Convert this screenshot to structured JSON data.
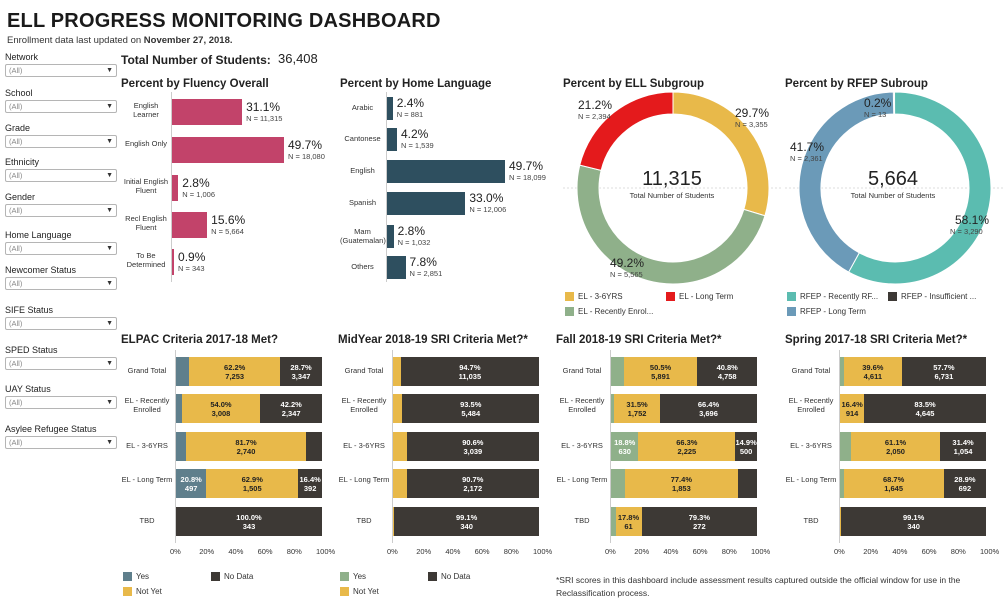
{
  "header": {
    "title": "ELL PROGRESS MONITORING DASHBOARD",
    "updated_prefix": "Enrollment data last updated on ",
    "updated_date": "November 27, 2018.",
    "total_label": "Total Number of Students:",
    "total_value": "36,408"
  },
  "filters": [
    {
      "label": "Network",
      "value": "(All)"
    },
    {
      "label": "School",
      "value": "(All)"
    },
    {
      "label": "Grade",
      "value": "(All)"
    },
    {
      "label": "Ethnicity",
      "value": "(All)"
    },
    {
      "label": "Gender",
      "value": "(All)"
    },
    {
      "label": "Home Language",
      "value": "(All)"
    },
    {
      "label": "Newcomer Status",
      "value": "(All)"
    },
    {
      "label": "SIFE Status",
      "value": "(All)"
    },
    {
      "label": "SPED Status",
      "value": "(All)"
    },
    {
      "label": "UAY Status",
      "value": "(All)"
    },
    {
      "label": "Asylee Refugee Status",
      "value": "(All)"
    }
  ],
  "colors": {
    "pink": "#c2436a",
    "navy": "#2e4f5f",
    "yellow": "#e8b94a",
    "red": "#e41a1c",
    "green": "#8fb08a",
    "teal": "#5bbcb0",
    "steel": "#6b9ab8",
    "dark": "#3d3935",
    "slate": "#5f7f8c"
  },
  "fluency": {
    "title": "Percent by Fluency Overall",
    "rows": [
      {
        "label": "English Learner",
        "pct": "31.1%",
        "n": "N = 11,315",
        "value": 31.1
      },
      {
        "label": "English Only",
        "pct": "49.7%",
        "n": "N = 18,080",
        "value": 49.7
      },
      {
        "label": "Initial English Fluent",
        "pct": "2.8%",
        "n": "N = 1,006",
        "value": 2.8
      },
      {
        "label": "Recl English Fluent",
        "pct": "15.6%",
        "n": "N = 5,664",
        "value": 15.6
      },
      {
        "label": "To Be Determined",
        "pct": "0.9%",
        "n": "N = 343",
        "value": 0.9
      }
    ]
  },
  "home_language": {
    "title": "Percent by Home Language",
    "rows": [
      {
        "label": "Arabic",
        "pct": "2.4%",
        "n": "N = 881",
        "value": 2.4
      },
      {
        "label": "Cantonese",
        "pct": "4.2%",
        "n": "N = 1,539",
        "value": 4.2
      },
      {
        "label": "English",
        "pct": "49.7%",
        "n": "N = 18,099",
        "value": 49.7
      },
      {
        "label": "Spanish",
        "pct": "33.0%",
        "n": "N = 12,006",
        "value": 33.0
      },
      {
        "label": "Mam (Guatemalan)",
        "pct": "2.8%",
        "n": "N = 1,032",
        "value": 2.8
      },
      {
        "label": "Others",
        "pct": "7.8%",
        "n": "N = 2,851",
        "value": 7.8
      }
    ]
  },
  "ell_subgroup": {
    "title": "Percent by ELL Subgroup",
    "center_value": "11,315",
    "center_label": "Total Number of Students",
    "slices": [
      {
        "name": "EL - 3-6YRS",
        "pct": "29.7%",
        "n": "N = 3,355",
        "value": 29.7,
        "color": "#e8b94a"
      },
      {
        "name": "EL - Recently Enrol...",
        "pct": "49.2%",
        "n": "N = 5,565",
        "value": 49.2,
        "color": "#8fb08a"
      },
      {
        "name": "EL - Long Term",
        "pct": "21.2%",
        "n": "N = 2,394",
        "value": 21.2,
        "color": "#e41a1c"
      }
    ],
    "legend": [
      "EL - 3-6YRS",
      "EL - Long Term",
      "EL - Recently Enrol..."
    ]
  },
  "rfep_subgroup": {
    "title": "Percent by RFEP Subroup",
    "center_value": "5,664",
    "center_label": "Total Number of Students",
    "slices": [
      {
        "name": "RFEP - Insufficient ...",
        "pct": "0.2%",
        "n": "N = 13",
        "value": 0.2,
        "color": "#3d3935"
      },
      {
        "name": "RFEP - Recently RF...",
        "pct": "58.1%",
        "n": "N = 3,290",
        "value": 58.1,
        "color": "#5bbcb0"
      },
      {
        "name": "RFEP - Long Term",
        "pct": "41.7%",
        "n": "N = 2,361",
        "value": 41.7,
        "color": "#6b9ab8"
      }
    ],
    "legend": [
      "RFEP - Recently RF...",
      "RFEP - Insufficient ...",
      "RFEP - Long Term"
    ]
  },
  "criteria": {
    "row_labels": [
      "Grand Total",
      "EL - Recently Enrolled",
      "EL - 3-6YRS",
      "EL - Long Term",
      "TBD"
    ],
    "axis": [
      "0%",
      "20%",
      "40%",
      "60%",
      "80%",
      "100%"
    ],
    "panels": [
      {
        "title": "ELPAC Criteria 2017-18 Met?",
        "yes_color": "#5f7f8c",
        "rows": [
          {
            "yes": 9.1,
            "notyet": 62.2,
            "nodata": 28.7,
            "labels": [
              [],
              [
                "62.2%",
                "7,253"
              ],
              [
                "28.7%",
                "3,347"
              ]
            ]
          },
          {
            "yes": 3.8,
            "notyet": 54.0,
            "nodata": 42.2,
            "labels": [
              [],
              [
                "54.0%",
                "3,008"
              ],
              [
                "42.2%",
                "2,347"
              ]
            ]
          },
          {
            "yes": 7.1,
            "notyet": 81.7,
            "nodata": 11.2,
            "labels": [
              [],
              [
                "81.7%",
                "2,740"
              ],
              []
            ]
          },
          {
            "yes": 20.8,
            "notyet": 62.9,
            "nodata": 16.4,
            "labels": [
              [
                "20.8%",
                "497"
              ],
              [
                "62.9%",
                "1,505"
              ],
              [
                "16.4%",
                "392"
              ]
            ]
          },
          {
            "yes": 0,
            "notyet": 0,
            "nodata": 100,
            "labels": [
              [],
              [],
              [
                "100.0%",
                "343"
              ]
            ]
          }
        ]
      },
      {
        "title": "MidYear 2018-19 SRI Criteria Met?*",
        "yes_color": "#8fb08a",
        "rows": [
          {
            "yes": 0,
            "notyet": 5.3,
            "nodata": 94.7,
            "labels": [
              [],
              [],
              [
                "94.7%",
                "11,035"
              ]
            ]
          },
          {
            "yes": 0,
            "notyet": 6.5,
            "nodata": 93.5,
            "labels": [
              [],
              [],
              [
                "93.5%",
                "5,484"
              ]
            ]
          },
          {
            "yes": 0,
            "notyet": 9.4,
            "nodata": 90.6,
            "labels": [
              [],
              [],
              [
                "90.6%",
                "3,039"
              ]
            ]
          },
          {
            "yes": 0,
            "notyet": 9.3,
            "nodata": 90.7,
            "labels": [
              [],
              [],
              [
                "90.7%",
                "2,172"
              ]
            ]
          },
          {
            "yes": 0,
            "notyet": 0.9,
            "nodata": 99.1,
            "labels": [
              [],
              [],
              [
                "99.1%",
                "340"
              ]
            ]
          }
        ]
      },
      {
        "title": "Fall 2018-19 SRI Criteria Met?*",
        "yes_color": "#8fb08a",
        "rows": [
          {
            "yes": 8.7,
            "notyet": 50.5,
            "nodata": 40.8,
            "labels": [
              [],
              [
                "50.5%",
                "5,891"
              ],
              [
                "40.8%",
                "4,758"
              ]
            ]
          },
          {
            "yes": 2.1,
            "notyet": 31.5,
            "nodata": 66.4,
            "labels": [
              [],
              [
                "31.5%",
                "1,752"
              ],
              [
                "66.4%",
                "3,696"
              ]
            ]
          },
          {
            "yes": 18.8,
            "notyet": 66.3,
            "nodata": 14.9,
            "labels": [
              [
                "18.8%",
                "630"
              ],
              [
                "66.3%",
                "2,225"
              ],
              [
                "14.9%",
                "500"
              ]
            ]
          },
          {
            "yes": 9.5,
            "notyet": 77.4,
            "nodata": 13.1,
            "labels": [
              [],
              [
                "77.4%",
                "1,853"
              ],
              []
            ]
          },
          {
            "yes": 3.1,
            "notyet": 17.8,
            "nodata": 79.3,
            "labels": [
              [],
              [
                "17.8%",
                "61"
              ],
              [
                "79.3%",
                "272"
              ]
            ]
          }
        ]
      },
      {
        "title": "Spring 2017-18 SRI Criteria Met?*",
        "yes_color": "#8fb08a",
        "rows": [
          {
            "yes": 2.7,
            "notyet": 39.6,
            "nodata": 57.7,
            "labels": [
              [],
              [
                "39.6%",
                "4,611"
              ],
              [
                "57.7%",
                "6,731"
              ]
            ]
          },
          {
            "yes": 0.1,
            "notyet": 16.4,
            "nodata": 83.5,
            "labels": [
              [],
              [
                "16.4%",
                "914"
              ],
              [
                "83.5%",
                "4,645"
              ]
            ]
          },
          {
            "yes": 7.5,
            "notyet": 61.1,
            "nodata": 31.4,
            "labels": [
              [],
              [
                "61.1%",
                "2,050"
              ],
              [
                "31.4%",
                "1,054"
              ]
            ]
          },
          {
            "yes": 2.4,
            "notyet": 68.7,
            "nodata": 28.9,
            "labels": [
              [],
              [
                "68.7%",
                "1,645"
              ],
              [
                "28.9%",
                "692"
              ]
            ]
          },
          {
            "yes": 0,
            "notyet": 0.9,
            "nodata": 99.1,
            "labels": [
              [],
              [],
              [
                "99.1%",
                "340"
              ]
            ]
          }
        ]
      }
    ],
    "legend_left": {
      "yes": "Yes",
      "nodata": "No Data",
      "notyet": "Not Yet"
    },
    "legend_right": {
      "yes": "Yes",
      "nodata": "No Data",
      "notyet": "Not Yet"
    }
  },
  "footnote": "*SRI scores in this dashboard include assessment results captured outside the official window for use in the Reclassification process."
}
